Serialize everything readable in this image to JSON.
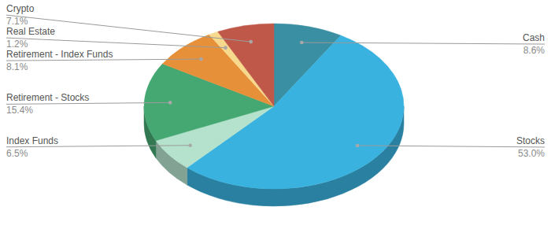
{
  "chart_data": {
    "type": "pie",
    "categories": [
      "Cash",
      "Stocks",
      "Index Funds",
      "Retirement - Stocks",
      "Retirement - Index Funds",
      "Real Estate",
      "Crypto"
    ],
    "values": [
      8.6,
      53.0,
      6.5,
      15.4,
      8.1,
      1.2,
      7.1
    ],
    "value_labels": [
      "8.6%",
      "53.0%",
      "6.5%",
      "15.4%",
      "8.1%",
      "1.2%",
      "7.1%"
    ],
    "colors": [
      "#3b8fa3",
      "#3ab2df",
      "#b5e2cd",
      "#45a873",
      "#e6913a",
      "#f6d98c",
      "#c0584a"
    ],
    "data_labels": true
  }
}
